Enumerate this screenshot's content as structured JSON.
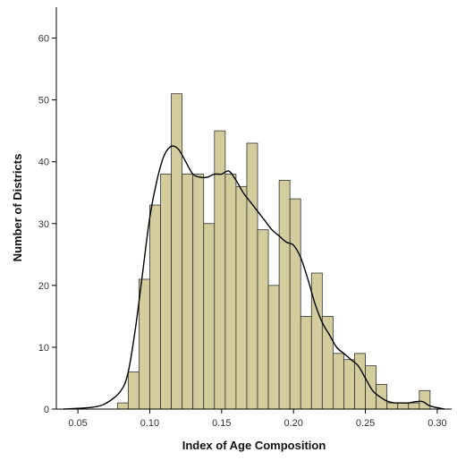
{
  "chart_data": {
    "type": "bar",
    "subtype": "histogram",
    "xlabel": "Index of Age Composition",
    "ylabel": "Number of Districts",
    "xlim": [
      0.035,
      0.31
    ],
    "ylim": [
      0,
      65
    ],
    "x_ticks": [
      0.05,
      0.1,
      0.15,
      0.2,
      0.25,
      0.3
    ],
    "x_tick_labels": [
      "0.05",
      "0.10",
      "0.15",
      "0.20",
      "0.25",
      "0.30"
    ],
    "y_ticks": [
      0,
      10,
      20,
      30,
      40,
      50,
      60
    ],
    "y_tick_labels": [
      "0",
      "10",
      "20",
      "30",
      "40",
      "50",
      "60"
    ],
    "bin_width": 0.0075,
    "bin_starts": [
      0.0775,
      0.085,
      0.0925,
      0.1,
      0.1075,
      0.115,
      0.1225,
      0.13,
      0.1375,
      0.145,
      0.1525,
      0.16,
      0.1675,
      0.175,
      0.1825,
      0.19,
      0.1975,
      0.205,
      0.2125,
      0.22,
      0.2275,
      0.235,
      0.2425,
      0.25,
      0.2575,
      0.265,
      0.2725,
      0.28,
      0.2875
    ],
    "values": [
      1,
      6,
      21,
      33,
      38,
      51,
      38,
      38,
      30,
      45,
      38,
      36,
      43,
      29,
      20,
      37,
      34,
      15,
      22,
      15,
      9,
      8,
      9,
      7,
      4,
      1,
      1,
      1,
      3
    ],
    "density_curve": {
      "x": [
        0.04,
        0.06,
        0.07,
        0.08,
        0.085,
        0.09,
        0.095,
        0.1,
        0.105,
        0.11,
        0.115,
        0.12,
        0.125,
        0.13,
        0.135,
        0.14,
        0.145,
        0.15,
        0.155,
        0.16,
        0.165,
        0.17,
        0.175,
        0.18,
        0.185,
        0.19,
        0.195,
        0.2,
        0.205,
        0.21,
        0.215,
        0.22,
        0.225,
        0.23,
        0.235,
        0.24,
        0.245,
        0.25,
        0.255,
        0.26,
        0.265,
        0.27,
        0.275,
        0.28,
        0.285,
        0.29,
        0.295,
        0.305
      ],
      "y": [
        0,
        0.3,
        1,
        3,
        6,
        13,
        22,
        31,
        37,
        41,
        42.5,
        42,
        40,
        38,
        37.5,
        37.5,
        38,
        38,
        38.5,
        37,
        35,
        33.5,
        32,
        30.5,
        29,
        28,
        27,
        26.5,
        24.5,
        21,
        17,
        14,
        12,
        10,
        9,
        8,
        7,
        5,
        3,
        2,
        1.3,
        1,
        1,
        1,
        1.2,
        1.2,
        0.5,
        0
      ]
    },
    "bar_fill": "#d3cd9e",
    "bar_stroke": "#333333",
    "curve_color": "#000000",
    "grid": false,
    "legend": false
  }
}
